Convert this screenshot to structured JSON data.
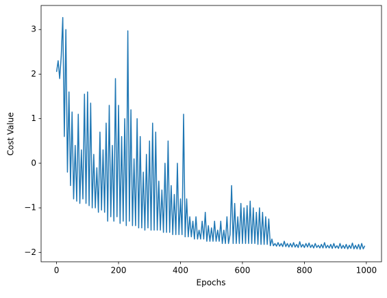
{
  "chart_data": {
    "type": "line",
    "xlabel": "Epochs",
    "ylabel": "Cost Value",
    "color": "#1f77b4",
    "x": [
      0,
      5,
      10,
      15,
      20,
      25,
      30,
      35,
      40,
      45,
      50,
      55,
      60,
      65,
      70,
      75,
      80,
      85,
      90,
      95,
      100,
      105,
      110,
      115,
      120,
      125,
      130,
      135,
      140,
      145,
      150,
      155,
      160,
      165,
      170,
      175,
      180,
      185,
      190,
      195,
      200,
      205,
      210,
      215,
      220,
      225,
      230,
      235,
      240,
      245,
      250,
      255,
      260,
      265,
      270,
      275,
      280,
      285,
      290,
      295,
      300,
      305,
      310,
      315,
      320,
      325,
      330,
      335,
      340,
      345,
      350,
      355,
      360,
      365,
      370,
      375,
      380,
      385,
      390,
      395,
      400,
      405,
      410,
      415,
      420,
      425,
      430,
      435,
      440,
      445,
      450,
      455,
      460,
      465,
      470,
      475,
      480,
      485,
      490,
      495,
      500,
      505,
      510,
      515,
      520,
      525,
      530,
      535,
      540,
      545,
      550,
      555,
      560,
      565,
      570,
      575,
      580,
      585,
      590,
      595,
      600,
      605,
      610,
      615,
      620,
      625,
      630,
      635,
      640,
      645,
      650,
      655,
      660,
      665,
      670,
      675,
      680,
      685,
      690,
      695,
      700,
      705,
      710,
      715,
      720,
      725,
      730,
      735,
      740,
      745,
      750,
      755,
      760,
      765,
      770,
      775,
      780,
      785,
      790,
      795,
      800,
      805,
      810,
      815,
      820,
      825,
      830,
      835,
      840,
      845,
      850,
      855,
      860,
      865,
      870,
      875,
      880,
      885,
      890,
      895,
      900,
      905,
      910,
      915,
      920,
      925,
      930,
      935,
      940,
      945,
      950,
      955,
      960,
      965,
      970,
      975,
      980,
      985,
      990,
      995
    ],
    "values": [
      2.05,
      2.3,
      1.9,
      2.4,
      3.27,
      0.6,
      3.0,
      -0.2,
      1.6,
      -0.5,
      1.15,
      -0.8,
      0.4,
      -0.85,
      1.1,
      -0.9,
      0.3,
      -0.8,
      1.55,
      -0.9,
      1.6,
      -0.95,
      1.35,
      -1.0,
      0.2,
      -1.0,
      -0.1,
      -1.1,
      0.7,
      -1.05,
      0.3,
      -1.1,
      0.9,
      -1.3,
      1.3,
      -1.2,
      0.4,
      -1.3,
      1.9,
      -1.2,
      1.3,
      -1.35,
      0.6,
      -1.3,
      1.0,
      -1.4,
      2.97,
      -1.3,
      1.2,
      -1.4,
      0.1,
      -1.4,
      1.0,
      -1.45,
      0.6,
      -1.45,
      -0.2,
      -1.5,
      0.2,
      -1.45,
      0.5,
      -1.5,
      0.9,
      -1.5,
      0.7,
      -1.5,
      -0.4,
      -1.5,
      -0.6,
      -1.55,
      0.0,
      -1.55,
      0.5,
      -1.55,
      -0.5,
      -1.6,
      -0.7,
      -1.6,
      0.0,
      -1.6,
      -0.8,
      -1.6,
      1.1,
      -1.65,
      -0.8,
      -1.65,
      -1.2,
      -1.65,
      -1.3,
      -1.7,
      -1.2,
      -1.7,
      -1.5,
      -1.7,
      -1.3,
      -1.7,
      -1.1,
      -1.75,
      -1.4,
      -1.75,
      -1.45,
      -1.75,
      -1.3,
      -1.75,
      -1.5,
      -1.75,
      -1.3,
      -1.8,
      -1.5,
      -1.8,
      -1.2,
      -1.8,
      -1.6,
      -0.5,
      -1.8,
      -0.9,
      -1.8,
      -1.2,
      -1.8,
      -0.9,
      -1.8,
      -1.0,
      -1.8,
      -0.95,
      -1.8,
      -0.85,
      -1.8,
      -1.0,
      -1.8,
      -1.1,
      -1.82,
      -1.0,
      -1.82,
      -1.1,
      -1.82,
      -1.2,
      -1.82,
      -1.25,
      -1.85,
      -1.7,
      -1.85,
      -1.8,
      -1.86,
      -1.78,
      -1.86,
      -1.8,
      -1.87,
      -1.75,
      -1.87,
      -1.8,
      -1.88,
      -1.8,
      -1.88,
      -1.78,
      -1.88,
      -1.82,
      -1.89,
      -1.76,
      -1.88,
      -1.82,
      -1.89,
      -1.8,
      -1.88,
      -1.79,
      -1.89,
      -1.83,
      -1.9,
      -1.8,
      -1.89,
      -1.84,
      -1.9,
      -1.82,
      -1.9,
      -1.78,
      -1.9,
      -1.84,
      -1.9,
      -1.82,
      -1.91,
      -1.8,
      -1.9,
      -1.85,
      -1.91,
      -1.8,
      -1.91,
      -1.84,
      -1.91,
      -1.82,
      -1.92,
      -1.84,
      -1.91,
      -1.79,
      -1.92,
      -1.84,
      -1.92,
      -1.82,
      -1.93,
      -1.8,
      -1.92,
      -1.85
    ],
    "xlim": [
      -50,
      1049
    ],
    "ylim": [
      -2.21,
      3.54
    ],
    "xticks": [
      0,
      200,
      400,
      600,
      800,
      1000
    ],
    "yticks": [
      {
        "value": -2,
        "label": "−2"
      },
      {
        "value": -1,
        "label": "−1"
      },
      0,
      1,
      2,
      3
    ]
  }
}
